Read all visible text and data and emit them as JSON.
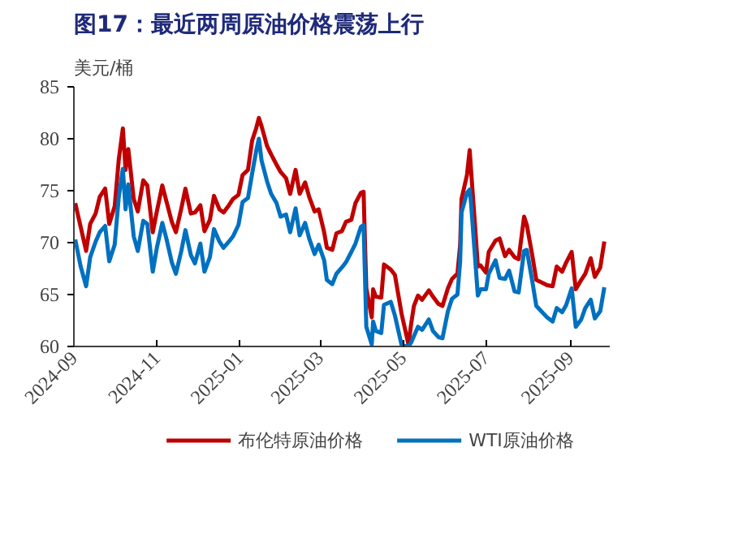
{
  "chart_data": {
    "type": "line",
    "title": "图17：最近两周原油价格震荡上行",
    "ylabel": "美元/桶",
    "x": [
      "2024-09-02",
      "2024-09-06",
      "2024-09-10",
      "2024-09-13",
      "2024-09-17",
      "2024-09-20",
      "2024-09-24",
      "2024-09-27",
      "2024-10-01",
      "2024-10-04",
      "2024-10-07",
      "2024-10-09",
      "2024-10-11",
      "2024-10-15",
      "2024-10-18",
      "2024-10-22",
      "2024-10-25",
      "2024-10-29",
      "2024-11-01",
      "2024-11-05",
      "2024-11-08",
      "2024-11-12",
      "2024-11-15",
      "2024-11-19",
      "2024-11-22",
      "2024-11-26",
      "2024-11-29",
      "2024-12-03",
      "2024-12-06",
      "2024-12-10",
      "2024-12-13",
      "2024-12-17",
      "2024-12-20",
      "2024-12-24",
      "2024-12-27",
      "2024-12-31",
      "2025-01-03",
      "2025-01-07",
      "2025-01-10",
      "2025-01-13",
      "2025-01-15",
      "2025-01-17",
      "2025-01-21",
      "2025-01-24",
      "2025-01-28",
      "2025-01-31",
      "2025-02-04",
      "2025-02-07",
      "2025-02-11",
      "2025-02-14",
      "2025-02-18",
      "2025-02-21",
      "2025-02-25",
      "2025-02-28",
      "2025-03-04",
      "2025-03-06",
      "2025-03-10",
      "2025-03-13",
      "2025-03-17",
      "2025-03-20",
      "2025-03-24",
      "2025-03-27",
      "2025-03-31",
      "2025-04-02",
      "2025-04-03",
      "2025-04-04",
      "2025-04-08",
      "2025-04-09",
      "2025-04-11",
      "2025-04-15",
      "2025-04-17",
      "2025-04-22",
      "2025-04-25",
      "2025-04-30",
      "2025-05-05",
      "2025-05-07",
      "2025-05-09",
      "2025-05-12",
      "2025-05-15",
      "2025-05-20",
      "2025-05-23",
      "2025-05-27",
      "2025-05-30",
      "2025-06-03",
      "2025-06-06",
      "2025-06-10",
      "2025-06-12",
      "2025-06-13",
      "2025-06-17",
      "2025-06-19",
      "2025-06-20",
      "2025-06-23",
      "2025-06-25",
      "2025-06-27",
      "2025-07-01",
      "2025-07-03",
      "2025-07-08",
      "2025-07-11",
      "2025-07-15",
      "2025-07-18",
      "2025-07-22",
      "2025-07-25",
      "2025-07-29",
      "2025-07-31",
      "2025-08-04",
      "2025-08-07",
      "2025-08-12",
      "2025-08-15",
      "2025-08-19",
      "2025-08-22",
      "2025-08-26",
      "2025-08-29",
      "2025-09-02",
      "2025-09-05",
      "2025-09-09",
      "2025-09-12",
      "2025-09-16",
      "2025-09-19",
      "2025-09-23",
      "2025-09-26"
    ],
    "series": [
      {
        "name": "布伦特原油价格",
        "color": "#c00000",
        "values": [
          73.8,
          71.5,
          69.2,
          71.8,
          72.8,
          74.4,
          75.2,
          71.8,
          73.5,
          78.0,
          81.0,
          77.0,
          79.0,
          74.2,
          73.0,
          76.0,
          75.5,
          71.0,
          73.0,
          75.5,
          74.0,
          72.0,
          71.0,
          73.3,
          75.2,
          72.8,
          72.9,
          73.6,
          71.1,
          72.2,
          74.5,
          73.2,
          72.9,
          73.6,
          74.2,
          74.6,
          76.5,
          77.0,
          79.8,
          81.0,
          82.0,
          81.2,
          79.3,
          78.5,
          77.5,
          76.8,
          76.2,
          74.7,
          77.0,
          74.7,
          75.8,
          74.4,
          73.0,
          73.2,
          71.0,
          69.5,
          69.3,
          70.9,
          71.1,
          72.0,
          72.2,
          73.8,
          74.8,
          74.9,
          70.1,
          65.6,
          62.8,
          65.5,
          64.8,
          64.7,
          67.9,
          67.4,
          66.9,
          63.1,
          60.2,
          62.2,
          63.9,
          64.9,
          64.5,
          65.4,
          64.8,
          64.1,
          63.9,
          65.6,
          66.5,
          67.0,
          69.8,
          74.2,
          76.5,
          78.9,
          77.0,
          71.5,
          67.7,
          67.8,
          67.1,
          69.1,
          70.2,
          70.4,
          68.7,
          69.3,
          68.6,
          68.4,
          72.5,
          71.7,
          68.8,
          66.4,
          66.1,
          65.9,
          65.8,
          67.7,
          67.2,
          68.1,
          69.1,
          65.5,
          66.4,
          67.0,
          68.5,
          66.7,
          67.6,
          70.1
        ]
      },
      {
        "name": "WTI原油价格",
        "color": "#0070c0",
        "values": [
          70.3,
          67.7,
          65.8,
          68.6,
          70.1,
          71.0,
          71.6,
          68.2,
          69.8,
          74.4,
          77.1,
          73.2,
          75.6,
          70.6,
          69.2,
          72.1,
          71.8,
          67.2,
          69.5,
          71.9,
          70.4,
          68.1,
          67.0,
          69.2,
          71.2,
          68.8,
          68.0,
          69.9,
          67.2,
          68.6,
          71.3,
          70.1,
          69.5,
          70.1,
          70.6,
          71.7,
          73.9,
          74.3,
          76.6,
          78.8,
          80.0,
          77.9,
          75.9,
          74.7,
          73.8,
          72.5,
          72.7,
          71.0,
          73.3,
          70.7,
          71.9,
          70.4,
          68.9,
          69.8,
          68.3,
          66.4,
          66.0,
          67.0,
          67.6,
          68.1,
          69.1,
          69.9,
          71.5,
          71.7,
          66.9,
          61.9,
          60.2,
          62.4,
          61.5,
          61.3,
          64.0,
          64.3,
          63.0,
          60.1,
          60.0,
          60.4,
          61.0,
          61.9,
          61.6,
          62.6,
          61.5,
          60.9,
          60.8,
          63.4,
          64.6,
          65.0,
          68.2,
          72.9,
          74.8,
          75.1,
          73.8,
          68.5,
          64.9,
          65.5,
          65.5,
          67.0,
          68.3,
          66.6,
          66.5,
          67.3,
          65.3,
          65.2,
          69.2,
          69.3,
          66.3,
          63.9,
          63.2,
          62.8,
          62.4,
          63.7,
          63.3,
          64.0,
          65.6,
          61.9,
          62.6,
          63.7,
          64.5,
          62.7,
          63.4,
          65.7
        ]
      }
    ],
    "ylim": [
      60,
      85
    ],
    "yticks": [
      60,
      65,
      70,
      75,
      80,
      85
    ],
    "xlim": [
      "2024-09-01",
      "2025-09-30"
    ],
    "xticks": [
      {
        "value": "2024-09-01",
        "label": "2024-09"
      },
      {
        "value": "2024-11-01",
        "label": "2024-11"
      },
      {
        "value": "2025-01-01",
        "label": "2025-01"
      },
      {
        "value": "2025-03-01",
        "label": "2025-03"
      },
      {
        "value": "2025-05-01",
        "label": "2025-05"
      },
      {
        "value": "2025-07-01",
        "label": "2025-07"
      },
      {
        "value": "2025-09-01",
        "label": "2025-09"
      }
    ],
    "grid": false,
    "legend": "bottom"
  }
}
